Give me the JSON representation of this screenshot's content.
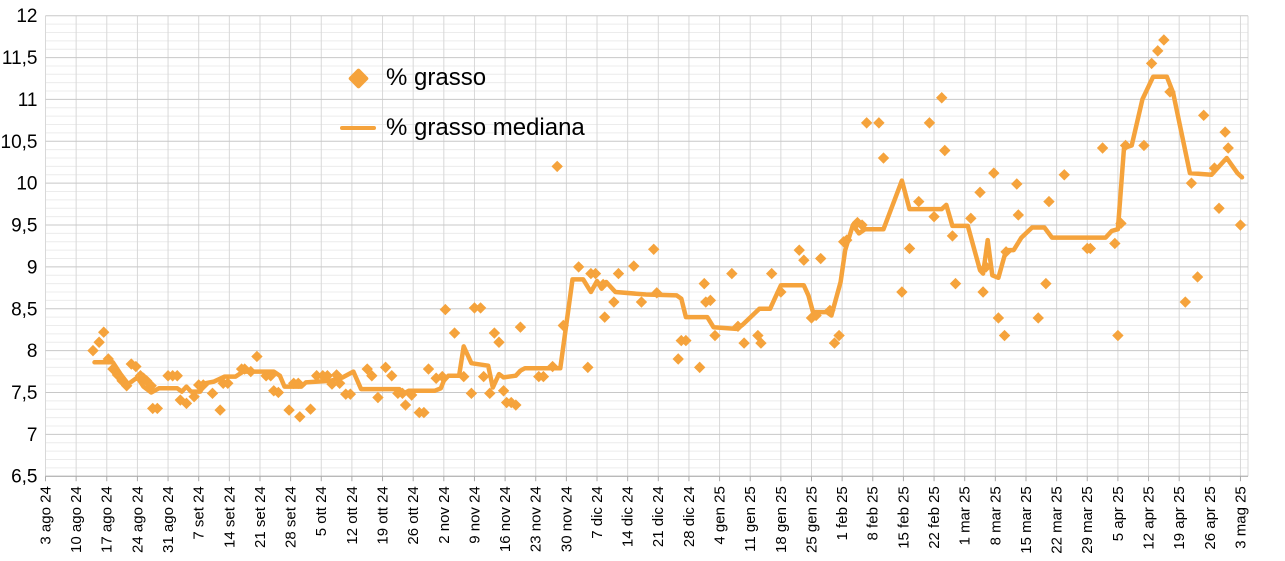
{
  "chart": {
    "legend": {
      "grasso": "% grasso",
      "mediana": "% grasso mediana"
    },
    "colors": {
      "series": "#F5A33C",
      "grid_minor": "#ECECEC",
      "grid_major": "#C8C8C8",
      "grid_vertical": "#D8D8D8",
      "axis": "#ABABAB",
      "text": "#000000",
      "background": "#FFFFFF"
    },
    "y_axis": {
      "min": 6.5,
      "max": 12,
      "major_step": 0.5,
      "minor_step": 0.1,
      "tick_labels": [
        "12",
        "11,5",
        "11",
        "10,5",
        "10",
        "9,5",
        "9",
        "8,5",
        "8",
        "7,5",
        "7",
        "6,5"
      ]
    },
    "x_axis": {
      "tick_labels": [
        "3 ago 24",
        "10 ago 24",
        "17 ago 24",
        "24 ago 24",
        "31 ago 24",
        "7 set 24",
        "14 set 24",
        "21 set 24",
        "28 set 24",
        "5 ott 24",
        "12 ott 24",
        "19 ott 24",
        "26 ott 24",
        "2 nov 24",
        "9 nov 24",
        "16 nov 24",
        "23 nov 24",
        "30 nov 24",
        "7 dic 24",
        "14 dic 24",
        "21 dic 24",
        "28 dic 24",
        "4 gen 25",
        "11 gen 25",
        "18 gen 25",
        "25 gen 25",
        "1 feb 25",
        "8 feb 25",
        "15 feb 25",
        "22 feb 25",
        "1 mar 25",
        "8 mar 25",
        "15 mar 25",
        "22 mar 25",
        "29 mar 25",
        "5 apr 25",
        "12 apr 25",
        "19 apr 25",
        "26 apr 25",
        "3 mag 25"
      ]
    }
  },
  "chart_data": {
    "type": "scatter",
    "title": "",
    "xlabel": "",
    "ylabel": "",
    "ylim": [
      6.5,
      12
    ],
    "grid": true,
    "legend_position": "top-center",
    "x_unit": "week index into chart.x_axis.tick_labels (0 = 3 ago 24, 39 = 3 mag 25)",
    "series": [
      {
        "name": "% grasso",
        "style": "diamond-markers",
        "points": [
          [
            1.55,
            8.0
          ],
          [
            1.75,
            8.1
          ],
          [
            1.9,
            8.22
          ],
          [
            2.05,
            7.9
          ],
          [
            2.2,
            7.78
          ],
          [
            2.35,
            7.71
          ],
          [
            2.5,
            7.64
          ],
          [
            2.65,
            7.58
          ],
          [
            2.8,
            7.84
          ],
          [
            2.95,
            7.81
          ],
          [
            3.1,
            7.7
          ],
          [
            3.2,
            7.67
          ],
          [
            3.3,
            7.64
          ],
          [
            3.45,
            7.58
          ],
          [
            3.5,
            7.31
          ],
          [
            3.65,
            7.31
          ],
          [
            4.0,
            7.7
          ],
          [
            4.15,
            7.7
          ],
          [
            4.3,
            7.7
          ],
          [
            4.4,
            7.41
          ],
          [
            4.6,
            7.37
          ],
          [
            4.85,
            7.45
          ],
          [
            5.0,
            7.59
          ],
          [
            5.15,
            7.59
          ],
          [
            5.45,
            7.49
          ],
          [
            5.7,
            7.29
          ],
          [
            5.8,
            7.61
          ],
          [
            5.95,
            7.61
          ],
          [
            6.4,
            7.78
          ],
          [
            6.5,
            7.78
          ],
          [
            6.7,
            7.75
          ],
          [
            6.9,
            7.93
          ],
          [
            7.2,
            7.7
          ],
          [
            7.35,
            7.7
          ],
          [
            7.45,
            7.52
          ],
          [
            7.6,
            7.5
          ],
          [
            7.95,
            7.29
          ],
          [
            8.1,
            7.61
          ],
          [
            8.25,
            7.61
          ],
          [
            8.3,
            7.21
          ],
          [
            8.65,
            7.3
          ],
          [
            8.85,
            7.7
          ],
          [
            9.05,
            7.7
          ],
          [
            9.2,
            7.7
          ],
          [
            9.35,
            7.6
          ],
          [
            9.5,
            7.71
          ],
          [
            9.6,
            7.61
          ],
          [
            9.8,
            7.48
          ],
          [
            9.95,
            7.48
          ],
          [
            10.5,
            7.78
          ],
          [
            10.65,
            7.7
          ],
          [
            10.85,
            7.44
          ],
          [
            11.1,
            7.8
          ],
          [
            11.3,
            7.7
          ],
          [
            11.5,
            7.49
          ],
          [
            11.65,
            7.49
          ],
          [
            11.75,
            7.35
          ],
          [
            11.95,
            7.47
          ],
          [
            12.2,
            7.26
          ],
          [
            12.35,
            7.26
          ],
          [
            12.5,
            7.78
          ],
          [
            12.75,
            7.67
          ],
          [
            12.95,
            7.69
          ],
          [
            13.05,
            8.49
          ],
          [
            13.35,
            8.21
          ],
          [
            13.65,
            7.69
          ],
          [
            13.9,
            7.49
          ],
          [
            14.0,
            8.51
          ],
          [
            14.2,
            8.51
          ],
          [
            14.3,
            7.69
          ],
          [
            14.5,
            7.49
          ],
          [
            14.65,
            8.21
          ],
          [
            14.8,
            8.1
          ],
          [
            14.95,
            7.52
          ],
          [
            15.05,
            7.38
          ],
          [
            15.2,
            7.38
          ],
          [
            15.35,
            7.35
          ],
          [
            15.5,
            8.28
          ],
          [
            16.1,
            7.69
          ],
          [
            16.25,
            7.69
          ],
          [
            16.55,
            7.81
          ],
          [
            16.7,
            10.2
          ],
          [
            16.9,
            8.3
          ],
          [
            17.4,
            9.0
          ],
          [
            17.7,
            7.8
          ],
          [
            17.8,
            8.92
          ],
          [
            17.95,
            8.92
          ],
          [
            18.2,
            8.79
          ],
          [
            18.25,
            8.4
          ],
          [
            18.55,
            8.58
          ],
          [
            18.7,
            8.92
          ],
          [
            19.2,
            9.01
          ],
          [
            19.45,
            8.58
          ],
          [
            19.85,
            9.21
          ],
          [
            19.95,
            8.69
          ],
          [
            20.65,
            7.9
          ],
          [
            20.75,
            8.12
          ],
          [
            20.9,
            8.12
          ],
          [
            21.35,
            7.8
          ],
          [
            21.5,
            8.8
          ],
          [
            21.55,
            8.58
          ],
          [
            21.7,
            8.6
          ],
          [
            21.85,
            8.18
          ],
          [
            22.4,
            8.92
          ],
          [
            22.6,
            8.29
          ],
          [
            22.8,
            8.09
          ],
          [
            23.25,
            8.18
          ],
          [
            23.35,
            8.09
          ],
          [
            23.7,
            8.92
          ],
          [
            24.0,
            8.7
          ],
          [
            24.6,
            9.2
          ],
          [
            24.75,
            9.08
          ],
          [
            25.0,
            8.39
          ],
          [
            25.15,
            8.42
          ],
          [
            25.3,
            9.1
          ],
          [
            25.6,
            8.48
          ],
          [
            25.75,
            8.09
          ],
          [
            25.9,
            8.18
          ],
          [
            26.05,
            9.3
          ],
          [
            26.15,
            9.32
          ],
          [
            26.5,
            9.53
          ],
          [
            26.65,
            9.5
          ],
          [
            26.8,
            10.72
          ],
          [
            27.2,
            10.72
          ],
          [
            27.35,
            10.3
          ],
          [
            27.95,
            8.7
          ],
          [
            28.2,
            9.22
          ],
          [
            28.5,
            9.78
          ],
          [
            28.85,
            10.72
          ],
          [
            29.0,
            9.6
          ],
          [
            29.25,
            11.02
          ],
          [
            29.35,
            10.39
          ],
          [
            29.6,
            9.37
          ],
          [
            29.7,
            8.8
          ],
          [
            30.2,
            9.58
          ],
          [
            30.5,
            9.89
          ],
          [
            30.6,
            8.7
          ],
          [
            30.7,
            9.0
          ],
          [
            30.95,
            10.12
          ],
          [
            31.1,
            8.39
          ],
          [
            31.3,
            8.18
          ],
          [
            31.35,
            9.18
          ],
          [
            31.7,
            9.99
          ],
          [
            31.75,
            9.62
          ],
          [
            32.4,
            8.39
          ],
          [
            32.65,
            8.8
          ],
          [
            32.75,
            9.78
          ],
          [
            33.25,
            10.1
          ],
          [
            34.0,
            9.22
          ],
          [
            34.1,
            9.22
          ],
          [
            34.5,
            10.42
          ],
          [
            34.9,
            9.28
          ],
          [
            35.0,
            8.18
          ],
          [
            35.1,
            9.52
          ],
          [
            35.25,
            10.45
          ],
          [
            35.85,
            10.45
          ],
          [
            36.1,
            11.43
          ],
          [
            36.3,
            11.58
          ],
          [
            36.5,
            11.71
          ],
          [
            36.7,
            11.09
          ],
          [
            37.2,
            8.58
          ],
          [
            37.4,
            10.0
          ],
          [
            37.6,
            8.88
          ],
          [
            37.8,
            10.81
          ],
          [
            38.15,
            10.18
          ],
          [
            38.3,
            9.7
          ],
          [
            38.5,
            10.61
          ],
          [
            38.6,
            10.42
          ],
          [
            39.0,
            9.5
          ]
        ]
      },
      {
        "name": "% grasso mediana",
        "style": "line",
        "points": [
          [
            1.6,
            7.86
          ],
          [
            2.2,
            7.86
          ],
          [
            2.45,
            7.72
          ],
          [
            2.7,
            7.6
          ],
          [
            3.0,
            7.68
          ],
          [
            3.2,
            7.57
          ],
          [
            3.45,
            7.5
          ],
          [
            3.7,
            7.55
          ],
          [
            4.3,
            7.55
          ],
          [
            4.45,
            7.51
          ],
          [
            4.6,
            7.57
          ],
          [
            4.75,
            7.51
          ],
          [
            5.05,
            7.51
          ],
          [
            5.2,
            7.61
          ],
          [
            5.5,
            7.63
          ],
          [
            5.85,
            7.69
          ],
          [
            6.2,
            7.69
          ],
          [
            6.45,
            7.75
          ],
          [
            7.45,
            7.75
          ],
          [
            7.65,
            7.7
          ],
          [
            7.8,
            7.57
          ],
          [
            8.35,
            7.57
          ],
          [
            8.5,
            7.62
          ],
          [
            9.3,
            7.64
          ],
          [
            9.7,
            7.68
          ],
          [
            10.05,
            7.75
          ],
          [
            10.3,
            7.54
          ],
          [
            11.55,
            7.54
          ],
          [
            11.7,
            7.49
          ],
          [
            11.85,
            7.52
          ],
          [
            12.7,
            7.52
          ],
          [
            12.9,
            7.55
          ],
          [
            13.0,
            7.64
          ],
          [
            13.15,
            7.7
          ],
          [
            13.5,
            7.7
          ],
          [
            13.65,
            8.05
          ],
          [
            13.9,
            7.85
          ],
          [
            14.45,
            7.82
          ],
          [
            14.6,
            7.56
          ],
          [
            14.8,
            7.72
          ],
          [
            14.95,
            7.68
          ],
          [
            15.35,
            7.7
          ],
          [
            15.5,
            7.76
          ],
          [
            15.65,
            7.79
          ],
          [
            16.8,
            7.79
          ],
          [
            17.2,
            8.85
          ],
          [
            17.55,
            8.85
          ],
          [
            17.8,
            8.7
          ],
          [
            18.0,
            8.83
          ],
          [
            18.15,
            8.74
          ],
          [
            18.3,
            8.82
          ],
          [
            18.6,
            8.7
          ],
          [
            19.6,
            8.67
          ],
          [
            20.6,
            8.66
          ],
          [
            20.75,
            8.62
          ],
          [
            20.9,
            8.4
          ],
          [
            21.6,
            8.4
          ],
          [
            21.8,
            8.28
          ],
          [
            22.55,
            8.26
          ],
          [
            22.75,
            8.31
          ],
          [
            23.3,
            8.5
          ],
          [
            23.65,
            8.5
          ],
          [
            23.8,
            8.62
          ],
          [
            24.0,
            8.78
          ],
          [
            24.75,
            8.78
          ],
          [
            24.9,
            8.66
          ],
          [
            25.05,
            8.46
          ],
          [
            25.5,
            8.46
          ],
          [
            25.65,
            8.42
          ],
          [
            25.95,
            8.82
          ],
          [
            26.1,
            9.2
          ],
          [
            26.35,
            9.5
          ],
          [
            26.55,
            9.4
          ],
          [
            26.75,
            9.45
          ],
          [
            27.35,
            9.45
          ],
          [
            27.95,
            10.03
          ],
          [
            28.2,
            9.69
          ],
          [
            29.25,
            9.69
          ],
          [
            29.4,
            9.74
          ],
          [
            29.6,
            9.49
          ],
          [
            30.1,
            9.49
          ],
          [
            30.5,
            8.96
          ],
          [
            30.6,
            8.92
          ],
          [
            30.75,
            9.32
          ],
          [
            30.9,
            8.9
          ],
          [
            31.1,
            8.87
          ],
          [
            31.35,
            9.2
          ],
          [
            31.6,
            9.2
          ],
          [
            31.85,
            9.35
          ],
          [
            32.2,
            9.47
          ],
          [
            32.6,
            9.47
          ],
          [
            32.85,
            9.35
          ],
          [
            34.6,
            9.35
          ],
          [
            34.8,
            9.43
          ],
          [
            35.0,
            9.45
          ],
          [
            35.2,
            10.42
          ],
          [
            35.45,
            10.45
          ],
          [
            35.8,
            11.0
          ],
          [
            36.15,
            11.27
          ],
          [
            36.6,
            11.27
          ],
          [
            36.8,
            11.08
          ],
          [
            37.35,
            10.12
          ],
          [
            38.05,
            10.1
          ],
          [
            38.25,
            10.18
          ],
          [
            38.55,
            10.3
          ],
          [
            38.9,
            10.12
          ],
          [
            39.05,
            10.07
          ]
        ]
      }
    ]
  }
}
